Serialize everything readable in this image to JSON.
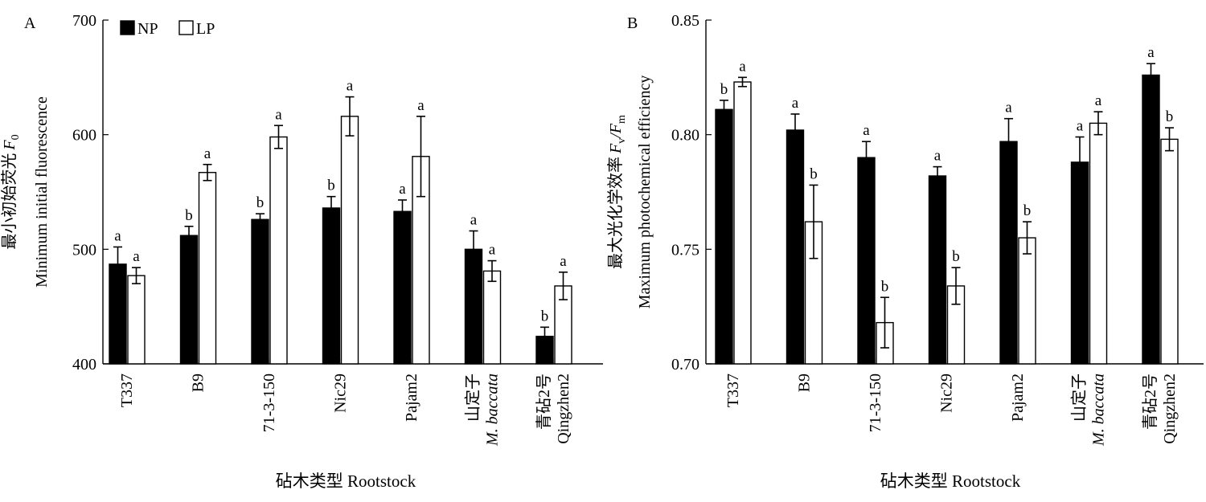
{
  "chart_data": [
    {
      "type": "bar",
      "panel_label": "A",
      "ylabel_cn": "最小初始荧光",
      "ylabel_sym": "F",
      "ylabel_sub": "0",
      "ylabel_en": "Minimum initial fluorescence",
      "xlabel": "砧木类型 Rootstock",
      "ylim": [
        400,
        700
      ],
      "yticks": [
        "400",
        "500",
        "600",
        "700"
      ],
      "ytick_values": [
        400,
        500,
        600,
        700
      ],
      "categories": [
        {
          "lines": [
            "T337"
          ],
          "italic": [
            false
          ]
        },
        {
          "lines": [
            "B9"
          ],
          "italic": [
            false
          ]
        },
        {
          "lines": [
            "71-3-150"
          ],
          "italic": [
            false
          ]
        },
        {
          "lines": [
            "Nic29"
          ],
          "italic": [
            false
          ]
        },
        {
          "lines": [
            "Pajam2"
          ],
          "italic": [
            false
          ]
        },
        {
          "lines": [
            "山定子",
            "M. baccata"
          ],
          "italic": [
            false,
            true
          ]
        },
        {
          "lines": [
            "青砧2号",
            "Qingzhen2"
          ],
          "italic": [
            false,
            false
          ]
        }
      ],
      "series": [
        {
          "name": "NP",
          "fill": "#000000",
          "values": [
            487,
            512,
            526,
            536,
            533,
            500,
            424
          ],
          "errors": [
            15,
            8,
            5,
            10,
            10,
            16,
            8
          ],
          "letters": [
            "a",
            "b",
            "b",
            "b",
            "a",
            "a",
            "b"
          ]
        },
        {
          "name": "LP",
          "fill": "#ffffff",
          "values": [
            477,
            567,
            598,
            616,
            581,
            481,
            468
          ],
          "errors": [
            7,
            7,
            10,
            17,
            35,
            9,
            12
          ],
          "letters": [
            "a",
            "a",
            "a",
            "a",
            "a",
            "a",
            "a"
          ]
        }
      ],
      "legend": [
        "NP",
        "LP"
      ],
      "legend_position": "top-left"
    },
    {
      "type": "bar",
      "panel_label": "B",
      "ylabel_cn": "最大光化学效率",
      "ylabel_sym": "F",
      "ylabel_sub": "v",
      "ylabel_sym2": "/F",
      "ylabel_sub2": "m",
      "ylabel_en": "Maximum photochemical efficiency",
      "xlabel": "砧木类型 Rootstock",
      "ylim": [
        0.7,
        0.85
      ],
      "yticks": [
        "0.70",
        "0.75",
        "0.80",
        "0.85"
      ],
      "ytick_values": [
        0.7,
        0.75,
        0.8,
        0.85
      ],
      "categories": [
        {
          "lines": [
            "T337"
          ],
          "italic": [
            false
          ]
        },
        {
          "lines": [
            "B9"
          ],
          "italic": [
            false
          ]
        },
        {
          "lines": [
            "71-3-150"
          ],
          "italic": [
            false
          ]
        },
        {
          "lines": [
            "Nic29"
          ],
          "italic": [
            false
          ]
        },
        {
          "lines": [
            "Pajam2"
          ],
          "italic": [
            false
          ]
        },
        {
          "lines": [
            "山定子",
            "M. baccata"
          ],
          "italic": [
            false,
            true
          ]
        },
        {
          "lines": [
            "青砧2号",
            "Qingzhen2"
          ],
          "italic": [
            false,
            false
          ]
        }
      ],
      "series": [
        {
          "name": "NP",
          "fill": "#000000",
          "values": [
            0.811,
            0.802,
            0.79,
            0.782,
            0.797,
            0.788,
            0.826
          ],
          "errors": [
            0.004,
            0.007,
            0.007,
            0.004,
            0.01,
            0.011,
            0.005
          ],
          "letters": [
            "b",
            "a",
            "a",
            "a",
            "a",
            "a",
            "a"
          ]
        },
        {
          "name": "LP",
          "fill": "#ffffff",
          "values": [
            0.823,
            0.762,
            0.718,
            0.734,
            0.755,
            0.805,
            0.798
          ],
          "errors": [
            0.002,
            0.016,
            0.011,
            0.008,
            0.007,
            0.005,
            0.005
          ],
          "letters": [
            "a",
            "b",
            "b",
            "b",
            "b",
            "a",
            "b"
          ]
        }
      ]
    }
  ]
}
